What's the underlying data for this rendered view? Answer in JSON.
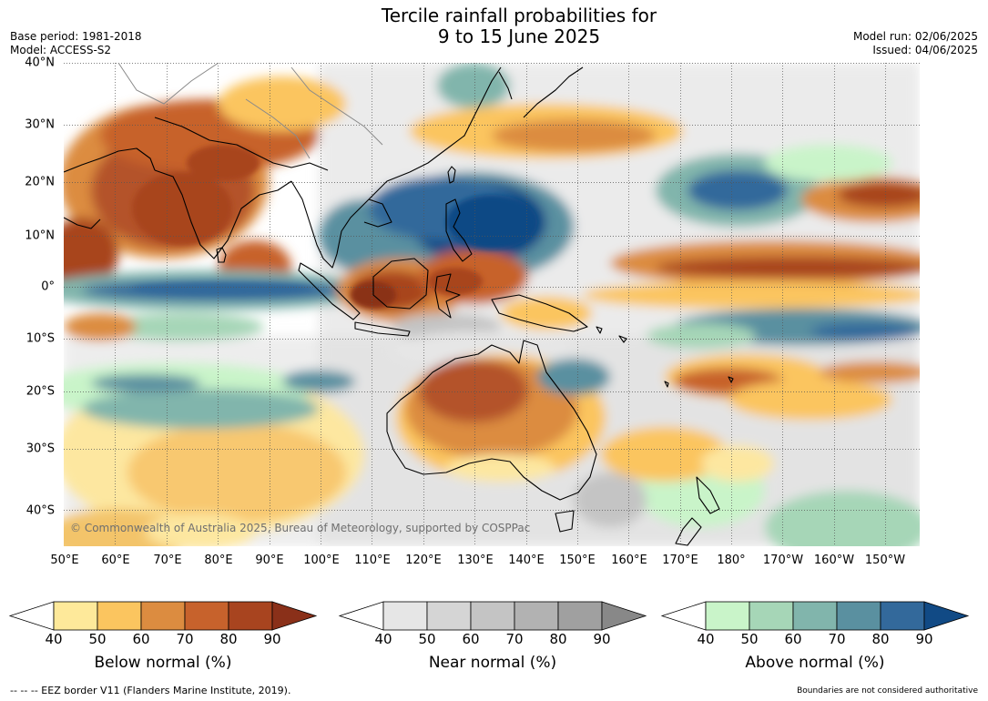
{
  "title": {
    "line1": "Tercile rainfall probabilities for",
    "line2": "9 to 15 June 2025"
  },
  "meta": {
    "base_period": "Base period: 1981-2018",
    "model": "Model: ACCESS-S2",
    "model_run": "Model run: 02/06/2025",
    "issued": "Issued: 04/06/2025"
  },
  "map": {
    "lat_labels": [
      "40°N",
      "30°N",
      "20°N",
      "10°N",
      "0°",
      "10°S",
      "20°S",
      "30°S",
      "40°S"
    ],
    "lon_labels": [
      "50°E",
      "60°E",
      "70°E",
      "80°E",
      "90°E",
      "100°E",
      "110°E",
      "120°E",
      "130°E",
      "140°E",
      "150°E",
      "160°E",
      "170°E",
      "180°",
      "170°W",
      "160°W",
      "150°W"
    ],
    "copyright": "© Commonwealth of Australia 2025, Bureau of Meteorology, supported by COSPPac",
    "colors": {
      "below": [
        "#fee99a",
        "#fbc55f",
        "#dc8c40",
        "#c7622c",
        "#a8441f",
        "#8a3019"
      ],
      "near": [
        "#e6e6e6",
        "#d5d5d5",
        "#c4c4c4",
        "#b2b2b2",
        "#a0a0a0",
        "#888888"
      ],
      "above": [
        "#c9f4c9",
        "#a6d6b7",
        "#81b5ac",
        "#5a90a0",
        "#33699b",
        "#114a85"
      ]
    }
  },
  "legend": {
    "below": {
      "title": "Below normal (%)",
      "ticks": [
        "40",
        "50",
        "60",
        "70",
        "80",
        "90"
      ]
    },
    "near": {
      "title": "Near normal (%)",
      "ticks": [
        "40",
        "50",
        "60",
        "70",
        "80",
        "90"
      ]
    },
    "above": {
      "title": "Above normal (%)",
      "ticks": [
        "40",
        "50",
        "60",
        "70",
        "80",
        "90"
      ]
    }
  },
  "footer": {
    "eez": "--  --  -- EEZ border V11 (Flanders Marine Institute, 2019).",
    "disclaimer": "Boundaries are not considered authoritative"
  }
}
